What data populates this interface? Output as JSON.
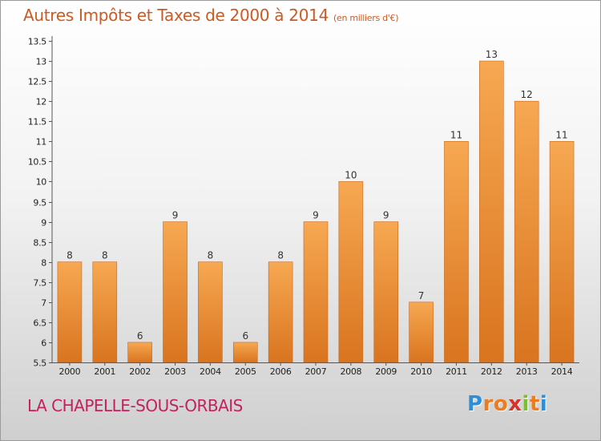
{
  "title": "Autres Impôts et Taxes de 2000 à 2014",
  "subtitle": "(en milliers d'€)",
  "commune": "LA CHAPELLE-SOUS-ORBAIS",
  "brand": {
    "letters": [
      "P",
      "r",
      "o",
      "x",
      "i",
      "t",
      "i"
    ],
    "colors": [
      "#2e8fd8",
      "#f07a1e",
      "#f07a1e",
      "#d8322a",
      "#7bbf2a",
      "#f07a1e",
      "#2e8fd8"
    ]
  },
  "colors": {
    "bar_top": "#f7a852",
    "bar_bottom": "#d9741f",
    "bar_edge": "#c8681c",
    "value_text": "#333333",
    "tick_text": "#222222"
  },
  "chart_data": {
    "type": "bar",
    "categories": [
      "2000",
      "2001",
      "2002",
      "2003",
      "2004",
      "2005",
      "2006",
      "2007",
      "2008",
      "2009",
      "2010",
      "2011",
      "2012",
      "2013",
      "2014"
    ],
    "values": [
      8,
      8,
      6,
      9,
      8,
      6,
      8,
      9,
      10,
      9,
      7,
      11,
      13,
      12,
      11
    ],
    "value_labels": [
      "8",
      "8",
      "6",
      "9",
      "8",
      "6",
      "8",
      "9",
      "10",
      "9",
      "7",
      "11",
      "13",
      "12",
      "11"
    ],
    "ylim": [
      5.5,
      13.5
    ],
    "yticks": [
      5.5,
      6,
      6.5,
      7,
      7.5,
      8,
      8.5,
      9,
      9.5,
      10,
      10.5,
      11,
      11.5,
      12,
      12.5,
      13,
      13.5
    ],
    "ytick_labels": [
      "5.5",
      "6",
      "6.5",
      "7",
      "7.5",
      "8",
      "8.5",
      "9",
      "9.5",
      "10",
      "10.5",
      "11",
      "11.5",
      "12",
      "12.5",
      "13",
      "13.5"
    ],
    "grid": false,
    "xlabel": "",
    "ylabel": ""
  }
}
